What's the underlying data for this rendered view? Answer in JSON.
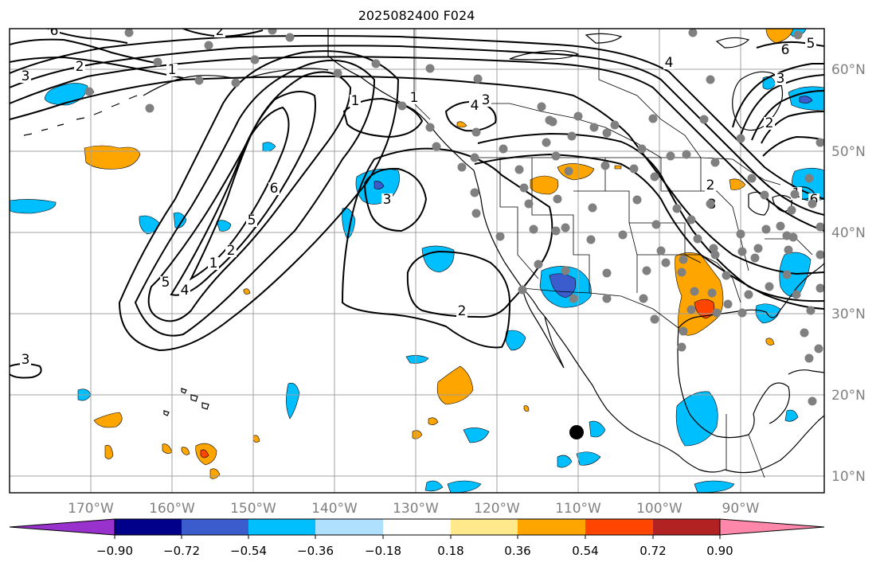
{
  "title": "2025082400 F024",
  "lon_labels": [
    "170°W",
    "160°W",
    "150°W",
    "140°W",
    "130°W",
    "120°W",
    "110°W",
    "100°W",
    "90°W"
  ],
  "lat_labels": [
    "60°N",
    "50°N",
    "40°N",
    "30°N",
    "20°N",
    "10°N"
  ],
  "contour_labels": [
    "6",
    "2",
    "2",
    "3",
    "1",
    "1",
    "4",
    "3",
    "1",
    "6",
    "5",
    "2",
    "1",
    "3",
    "5",
    "4",
    "3",
    "2",
    "1",
    "6",
    "5",
    "3",
    "2",
    "3",
    "2",
    "6",
    "4"
  ],
  "colorbar": {
    "ticks": [
      "−0.90",
      "−0.72",
      "−0.54",
      "−0.36",
      "−0.18",
      "0.18",
      "0.36",
      "0.54",
      "0.72",
      "0.90"
    ],
    "colors": [
      "#9932cc",
      "#00008b",
      "#3a5ccc",
      "#00bfff",
      "#afe1ff",
      "#ffffff",
      "#ffe98a",
      "#ffa500",
      "#ff4500",
      "#b22222",
      "#ff88aa"
    ]
  },
  "colors": {
    "frame": "#000000",
    "grid": "#a0a0a0",
    "station": "#808080",
    "lat_label": "#808080"
  }
}
